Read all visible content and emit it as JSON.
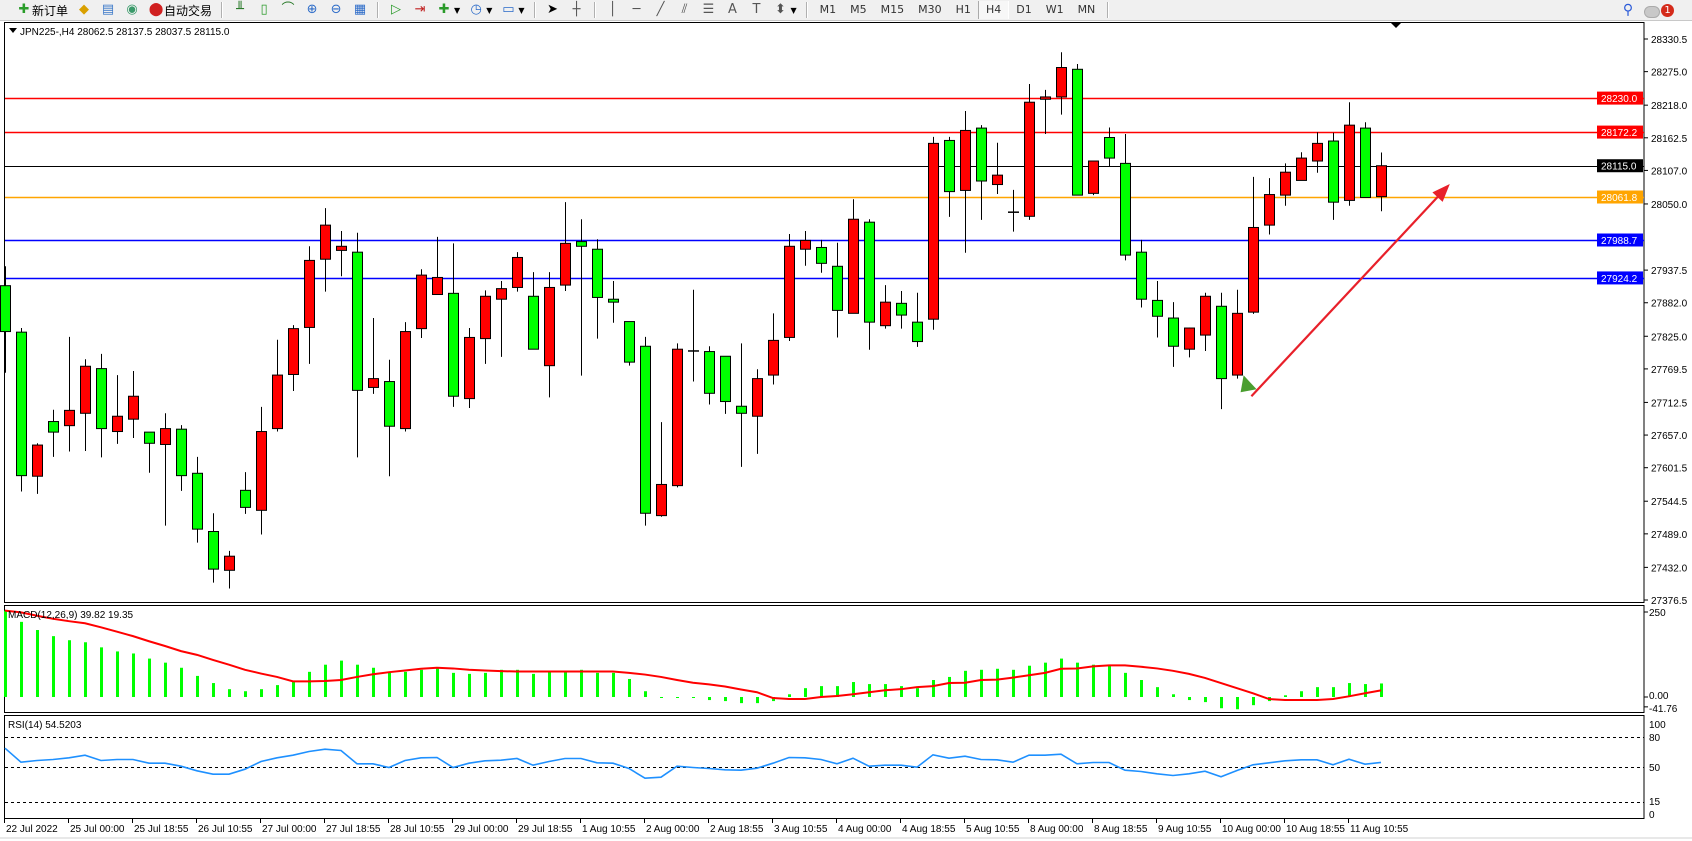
{
  "toolbar": {
    "new_order_label": "新订单",
    "auto_trading_label": "自动交易",
    "timeframes": [
      "M1",
      "M5",
      "M15",
      "M30",
      "H1",
      "H4",
      "D1",
      "W1",
      "MN"
    ],
    "active_timeframe": "H4",
    "notification_count": "1"
  },
  "chart_header": {
    "title": "JPN225-,H4  28062.5 28137.5 28037.5 28115.0"
  },
  "colors": {
    "bull_candle": "#FF0000",
    "bear_candle": "#00FF00",
    "macd_histogram": "#00FF00",
    "macd_signal": "#FF0000",
    "rsi_line": "#1E90FF",
    "arrow": "#E8202A",
    "marker": "#4A9E2F"
  },
  "chart_data": [
    {
      "type": "candlestick",
      "symbol": "JPN225-",
      "timeframe": "H4",
      "ohlc_header": {
        "open": 28062.5,
        "high": 28137.5,
        "low": 28037.5,
        "close": 28115.0
      },
      "ylim": [
        27376.5,
        28330.5
      ],
      "y_ticks": [
        "28330.5",
        "28275.0",
        "28218.0",
        "28162.5",
        "28107.0",
        "28050.0",
        "27937.5",
        "27882.0",
        "27825.0",
        "27769.5",
        "27712.5",
        "27657.0",
        "27601.5",
        "27544.5",
        "27489.0",
        "27432.0",
        "27376.5"
      ],
      "x_tick_labels": [
        "22 Jul 2022",
        "25 Jul 00:00",
        "25 Jul 18:55",
        "26 Jul 10:55",
        "27 Jul 00:00",
        "27 Jul 18:55",
        "28 Jul 10:55",
        "29 Jul 00:00",
        "29 Jul 18:55",
        "1 Aug 10:55",
        "2 Aug 00:00",
        "2 Aug 18:55",
        "3 Aug 10:55",
        "4 Aug 00:00",
        "4 Aug 18:55",
        "5 Aug 10:55",
        "8 Aug 00:00",
        "8 Aug 18:55",
        "9 Aug 10:55",
        "10 Aug 00:00",
        "10 Aug 18:55",
        "11 Aug 10:55"
      ],
      "grid": false,
      "candles_ohlc": [
        [
          27911,
          27944,
          27763,
          27833
        ],
        [
          27832,
          27839,
          27561,
          27588
        ],
        [
          27587,
          27643,
          27557,
          27640
        ],
        [
          27680,
          27700,
          27620,
          27662
        ],
        [
          27673,
          27824,
          27629,
          27699
        ],
        [
          27694,
          27786,
          27630,
          27774
        ],
        [
          27770,
          27795,
          27619,
          27668
        ],
        [
          27663,
          27759,
          27642,
          27689
        ],
        [
          27684,
          27766,
          27652,
          27723
        ],
        [
          27662,
          27662,
          27593,
          27643
        ],
        [
          27641,
          27694,
          27503,
          27668
        ],
        [
          27667,
          27674,
          27562,
          27588
        ],
        [
          27592,
          27620,
          27474,
          27497
        ],
        [
          27493,
          27524,
          27406,
          27429
        ],
        [
          27427,
          27460,
          27396,
          27451
        ],
        [
          27563,
          27594,
          27523,
          27534
        ],
        [
          27529,
          27705,
          27488,
          27663
        ],
        [
          27668,
          27819,
          27663,
          27759
        ],
        [
          27760,
          27844,
          27732,
          27838
        ],
        [
          27840,
          27978,
          27778,
          27954
        ],
        [
          27956,
          28043,
          27901,
          28014
        ],
        [
          27971,
          28004,
          27927,
          27978
        ],
        [
          27968,
          28001,
          27619,
          27733
        ],
        [
          27738,
          27856,
          27727,
          27753
        ],
        [
          27748,
          27785,
          27587,
          27672
        ],
        [
          27668,
          27849,
          27663,
          27833
        ],
        [
          27838,
          27939,
          27822,
          27929
        ],
        [
          27896,
          27994,
          27896,
          27925
        ],
        [
          27898,
          27983,
          27705,
          27723
        ],
        [
          27719,
          27839,
          27703,
          27823
        ],
        [
          27821,
          27903,
          27778,
          27893
        ],
        [
          27888,
          27919,
          27790,
          27906
        ],
        [
          27908,
          27968,
          27901,
          27959
        ],
        [
          27893,
          27934,
          27803,
          27803
        ],
        [
          27775,
          27934,
          27721,
          27908
        ],
        [
          27912,
          28053,
          27902,
          27983
        ],
        [
          27986,
          28024,
          27758,
          27978
        ],
        [
          27973,
          27990,
          27821,
          27891
        ],
        [
          27888,
          27919,
          27848,
          27883
        ],
        [
          27850,
          27850,
          27775,
          27781
        ],
        [
          27808,
          27824,
          27503,
          27524
        ],
        [
          27520,
          27679,
          27518,
          27573
        ],
        [
          27571,
          27813,
          27568,
          27803
        ],
        [
          27800,
          27904,
          27748,
          27800
        ],
        [
          27799,
          27808,
          27709,
          27728
        ],
        [
          27791,
          27791,
          27693,
          27714
        ],
        [
          27706,
          27813,
          27603,
          27694
        ],
        [
          27689,
          27769,
          27625,
          27753
        ],
        [
          27759,
          27864,
          27743,
          27818
        ],
        [
          27823,
          27999,
          27817,
          27978
        ],
        [
          27973,
          28004,
          27945,
          27988
        ],
        [
          27976,
          27989,
          27933,
          27949
        ],
        [
          27944,
          27984,
          27823,
          27869
        ],
        [
          27864,
          28058,
          27864,
          28024
        ],
        [
          28019,
          28024,
          27802,
          27849
        ],
        [
          27843,
          27912,
          27838,
          27883
        ],
        [
          27881,
          27902,
          27838,
          27861
        ],
        [
          27849,
          27899,
          27807,
          27816
        ],
        [
          27854,
          28164,
          27836,
          28153
        ],
        [
          28158,
          28164,
          28028,
          28071
        ],
        [
          28073,
          28208,
          27967,
          28175
        ],
        [
          28179,
          28184,
          28023,
          28089
        ],
        [
          28083,
          28154,
          28067,
          28099
        ],
        [
          28035,
          28074,
          28003,
          28036
        ],
        [
          28029,
          28254,
          28023,
          28223
        ],
        [
          28228,
          28244,
          28169,
          28232
        ],
        [
          28232,
          28308,
          28202,
          28282
        ],
        [
          28279,
          28288,
          28065,
          28065
        ],
        [
          28068,
          28123,
          28065,
          28123
        ],
        [
          28163,
          28180,
          28113,
          28128
        ],
        [
          28119,
          28169,
          27954,
          27963
        ],
        [
          27968,
          27989,
          27874,
          27888
        ],
        [
          27886,
          27919,
          27823,
          27859
        ],
        [
          27856,
          27883,
          27773,
          27808
        ],
        [
          27803,
          27840,
          27789,
          27839
        ],
        [
          27827,
          27899,
          27800,
          27893
        ],
        [
          27876,
          27899,
          27701,
          27753
        ],
        [
          27759,
          27904,
          27753,
          27864
        ],
        [
          27866,
          28096,
          27863,
          28010
        ],
        [
          28014,
          28094,
          27998,
          28066
        ],
        [
          28065,
          28119,
          28047,
          28104
        ],
        [
          28090,
          28138,
          28090,
          28128
        ],
        [
          28123,
          28172,
          28103,
          28153
        ],
        [
          28157,
          28171,
          28023,
          28053
        ],
        [
          28056,
          28223,
          28047,
          28184
        ],
        [
          28179,
          28189,
          28061,
          28061
        ],
        [
          28062.5,
          28137.5,
          28037.5,
          28115.0
        ]
      ],
      "horizontal_lines": [
        {
          "price": 28230.0,
          "label": "28230.0",
          "color": "#FF0000"
        },
        {
          "price": 28172.2,
          "label": "28172.2",
          "color": "#FF0000"
        },
        {
          "price": 28115.0,
          "label": "28115.0",
          "color": "#000000"
        },
        {
          "price": 28061.8,
          "label": "28061.8",
          "color": "#FFA500"
        },
        {
          "price": 27988.7,
          "label": "27988.7",
          "color": "#0000FF"
        },
        {
          "price": 27924.2,
          "label": "27924.2",
          "color": "#0000FF"
        }
      ],
      "annotations": [
        {
          "type": "arrow",
          "from": {
            "bar": 77.9,
            "price": 27723
          },
          "to": {
            "bar": 90.3,
            "price": 28084
          }
        },
        {
          "type": "triangle-marker",
          "at": {
            "bar": 77.6,
            "price": 27745
          }
        }
      ]
    },
    {
      "type": "bar+line",
      "indicator": "MACD",
      "label": "MACD(12,26,9) 39.82 19.35",
      "y_ticks": [
        "250",
        "0.00",
        "-41.76"
      ],
      "ylim": [
        -41.76,
        270
      ],
      "histogram": [
        254,
        221,
        197,
        179,
        167,
        161,
        146,
        134,
        128,
        113,
        101,
        86,
        62,
        41,
        23,
        17,
        23,
        35,
        44,
        74,
        95,
        107,
        95,
        86,
        71,
        74,
        80,
        86,
        71,
        68,
        71,
        80,
        80,
        68,
        74,
        74,
        80,
        71,
        71,
        53,
        17,
        -1,
        -1,
        -1,
        -9,
        -12,
        -18,
        -18,
        -12,
        8,
        26,
        32,
        32,
        44,
        38,
        38,
        32,
        26,
        50,
        59,
        77,
        80,
        83,
        80,
        92,
        101,
        113,
        101,
        95,
        92,
        71,
        50,
        29,
        8,
        -9,
        -15,
        -33,
        -36,
        -24,
        -12,
        5,
        17,
        29,
        29,
        41,
        38,
        39.82
      ],
      "signal": [
        254,
        249,
        239,
        230,
        223,
        217,
        205,
        192,
        179,
        164,
        150,
        135,
        124,
        109,
        95,
        80,
        69,
        59,
        46,
        46,
        47,
        50,
        59,
        67,
        73,
        78,
        83,
        86,
        84,
        80,
        78,
        76,
        75,
        75,
        75,
        75,
        75,
        75,
        75,
        71,
        66,
        59,
        50,
        42,
        37,
        31,
        22,
        14,
        -3,
        -6,
        -6,
        0,
        3,
        8,
        14,
        20,
        23,
        29,
        32,
        41,
        42,
        50,
        51,
        57,
        64,
        71,
        83,
        84,
        90,
        93,
        93,
        89,
        84,
        77,
        68,
        56,
        41,
        26,
        11,
        -6,
        -9,
        -9,
        -9,
        -6,
        2,
        11,
        19.35
      ]
    },
    {
      "type": "line",
      "indicator": "RSI",
      "label": "RSI(14) 54.5203",
      "y_ticks": [
        "100",
        "80",
        "50",
        "15",
        "0"
      ],
      "levels": [
        80,
        50,
        15
      ],
      "ylim": [
        0,
        100
      ],
      "values": [
        68.8,
        54.8,
        56.5,
        57.5,
        59.2,
        61.8,
        56.5,
        57.5,
        57.5,
        53.8,
        53.8,
        50.8,
        46.2,
        42.8,
        42.8,
        47.8,
        55.5,
        59.2,
        61.8,
        65.5,
        67.8,
        66.5,
        53.2,
        53.2,
        49.5,
        56.5,
        59.2,
        59.5,
        49.5,
        53.8,
        56.2,
        56.8,
        58.5,
        51.8,
        55.5,
        58.5,
        58.5,
        54.2,
        53.8,
        48.5,
        38.8,
        39.8,
        50.8,
        49.5,
        48.5,
        47.2,
        46.8,
        48.8,
        53.8,
        59.5,
        59.2,
        57.5,
        53.2,
        58.8,
        50.8,
        51.8,
        51.8,
        49.8,
        62.2,
        58.8,
        60.8,
        57.5,
        57.2,
        54.8,
        61.8,
        61.8,
        62.8,
        53.2,
        54.5,
        54.5,
        46.8,
        45.5,
        43.2,
        41.5,
        43.2,
        45.8,
        40.2,
        46.5,
        52.2,
        54.2,
        56.2,
        57.2,
        57.2,
        52.2,
        57.8,
        52.8,
        54.5203
      ]
    }
  ]
}
